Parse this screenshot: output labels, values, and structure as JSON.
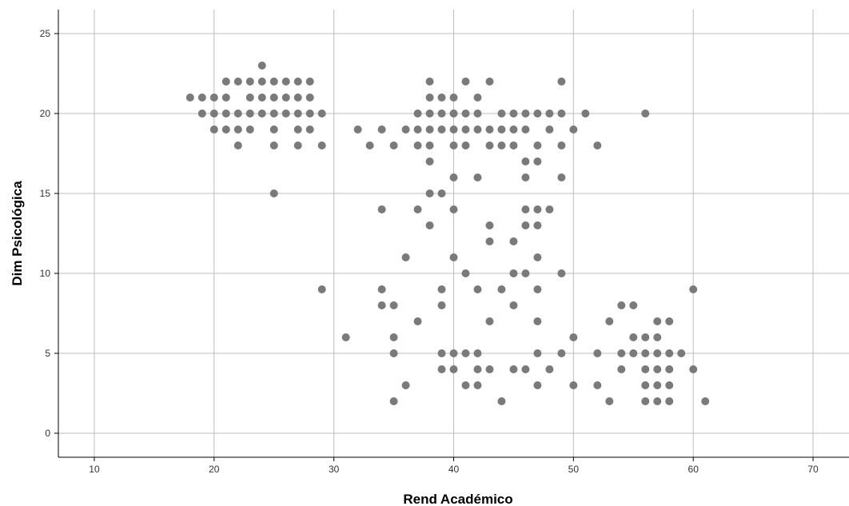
{
  "chart_data": {
    "type": "scatter",
    "title": "",
    "xlabel": "Rend Académico",
    "ylabel": "Dim Psicológica",
    "xlim": [
      7,
      73
    ],
    "ylim": [
      -1.5,
      26.5
    ],
    "xticks": [
      10,
      20,
      30,
      40,
      50,
      60,
      70
    ],
    "yticks": [
      0,
      5,
      10,
      15,
      20,
      25
    ],
    "grid": true,
    "point_color": "#7a7a7a",
    "points": [
      [
        18,
        21
      ],
      [
        19,
        21
      ],
      [
        19,
        20
      ],
      [
        20,
        21
      ],
      [
        20,
        19
      ],
      [
        20,
        20
      ],
      [
        21,
        22
      ],
      [
        21,
        21
      ],
      [
        21,
        20
      ],
      [
        21,
        19
      ],
      [
        22,
        22
      ],
      [
        22,
        20
      ],
      [
        22,
        19
      ],
      [
        22,
        18
      ],
      [
        23,
        22
      ],
      [
        23,
        21
      ],
      [
        23,
        20
      ],
      [
        23,
        19
      ],
      [
        24,
        23
      ],
      [
        24,
        22
      ],
      [
        24,
        21
      ],
      [
        24,
        20
      ],
      [
        25,
        22
      ],
      [
        25,
        21
      ],
      [
        25,
        20
      ],
      [
        25,
        19
      ],
      [
        25,
        18
      ],
      [
        25,
        15
      ],
      [
        26,
        22
      ],
      [
        26,
        21
      ],
      [
        26,
        20
      ],
      [
        27,
        22
      ],
      [
        27,
        21
      ],
      [
        27,
        20
      ],
      [
        27,
        19
      ],
      [
        27,
        18
      ],
      [
        28,
        22
      ],
      [
        28,
        21
      ],
      [
        28,
        20
      ],
      [
        28,
        19
      ],
      [
        29,
        20
      ],
      [
        29,
        18
      ],
      [
        29,
        9
      ],
      [
        31,
        6
      ],
      [
        32,
        19
      ],
      [
        33,
        18
      ],
      [
        34,
        19
      ],
      [
        34,
        14
      ],
      [
        34,
        9
      ],
      [
        34,
        8
      ],
      [
        35,
        18
      ],
      [
        35,
        8
      ],
      [
        35,
        6
      ],
      [
        35,
        5
      ],
      [
        35,
        2
      ],
      [
        36,
        19
      ],
      [
        36,
        11
      ],
      [
        36,
        3
      ],
      [
        37,
        20
      ],
      [
        37,
        19
      ],
      [
        37,
        18
      ],
      [
        37,
        14
      ],
      [
        37,
        7
      ],
      [
        38,
        22
      ],
      [
        38,
        21
      ],
      [
        38,
        20
      ],
      [
        38,
        19
      ],
      [
        38,
        18
      ],
      [
        38,
        17
      ],
      [
        38,
        15
      ],
      [
        38,
        13
      ],
      [
        39,
        21
      ],
      [
        39,
        20
      ],
      [
        39,
        19
      ],
      [
        39,
        15
      ],
      [
        39,
        9
      ],
      [
        39,
        8
      ],
      [
        39,
        5
      ],
      [
        39,
        4
      ],
      [
        40,
        21
      ],
      [
        40,
        20
      ],
      [
        40,
        19
      ],
      [
        40,
        18
      ],
      [
        40,
        16
      ],
      [
        40,
        14
      ],
      [
        40,
        11
      ],
      [
        40,
        5
      ],
      [
        40,
        4
      ],
      [
        41,
        22
      ],
      [
        41,
        20
      ],
      [
        41,
        19
      ],
      [
        41,
        18
      ],
      [
        41,
        10
      ],
      [
        41,
        5
      ],
      [
        41,
        3
      ],
      [
        42,
        21
      ],
      [
        42,
        20
      ],
      [
        42,
        19
      ],
      [
        42,
        16
      ],
      [
        42,
        9
      ],
      [
        42,
        5
      ],
      [
        42,
        4
      ],
      [
        42,
        3
      ],
      [
        43,
        22
      ],
      [
        43,
        19
      ],
      [
        43,
        18
      ],
      [
        43,
        13
      ],
      [
        43,
        12
      ],
      [
        43,
        7
      ],
      [
        43,
        4
      ],
      [
        44,
        20
      ],
      [
        44,
        19
      ],
      [
        44,
        18
      ],
      [
        44,
        9
      ],
      [
        44,
        2
      ],
      [
        45,
        20
      ],
      [
        45,
        19
      ],
      [
        45,
        18
      ],
      [
        45,
        12
      ],
      [
        45,
        10
      ],
      [
        45,
        8
      ],
      [
        45,
        4
      ],
      [
        46,
        20
      ],
      [
        46,
        19
      ],
      [
        46,
        17
      ],
      [
        46,
        16
      ],
      [
        46,
        14
      ],
      [
        46,
        13
      ],
      [
        46,
        10
      ],
      [
        46,
        4
      ],
      [
        47,
        20
      ],
      [
        47,
        18
      ],
      [
        47,
        17
      ],
      [
        47,
        14
      ],
      [
        47,
        13
      ],
      [
        47,
        11
      ],
      [
        47,
        9
      ],
      [
        47,
        7
      ],
      [
        47,
        5
      ],
      [
        47,
        3
      ],
      [
        48,
        20
      ],
      [
        48,
        19
      ],
      [
        48,
        14
      ],
      [
        48,
        4
      ],
      [
        49,
        22
      ],
      [
        49,
        20
      ],
      [
        49,
        18
      ],
      [
        49,
        16
      ],
      [
        49,
        10
      ],
      [
        49,
        5
      ],
      [
        50,
        19
      ],
      [
        50,
        6
      ],
      [
        50,
        3
      ],
      [
        51,
        20
      ],
      [
        52,
        18
      ],
      [
        52,
        5
      ],
      [
        52,
        3
      ],
      [
        53,
        7
      ],
      [
        53,
        2
      ],
      [
        54,
        8
      ],
      [
        54,
        5
      ],
      [
        54,
        4
      ],
      [
        55,
        8
      ],
      [
        55,
        6
      ],
      [
        55,
        5
      ],
      [
        56,
        20
      ],
      [
        56,
        6
      ],
      [
        56,
        5
      ],
      [
        56,
        4
      ],
      [
        56,
        3
      ],
      [
        56,
        2
      ],
      [
        57,
        7
      ],
      [
        57,
        6
      ],
      [
        57,
        5
      ],
      [
        57,
        4
      ],
      [
        57,
        3
      ],
      [
        57,
        2
      ],
      [
        58,
        7
      ],
      [
        58,
        5
      ],
      [
        58,
        4
      ],
      [
        58,
        3
      ],
      [
        58,
        2
      ],
      [
        59,
        5
      ],
      [
        60,
        9
      ],
      [
        60,
        4
      ],
      [
        61,
        2
      ]
    ]
  }
}
